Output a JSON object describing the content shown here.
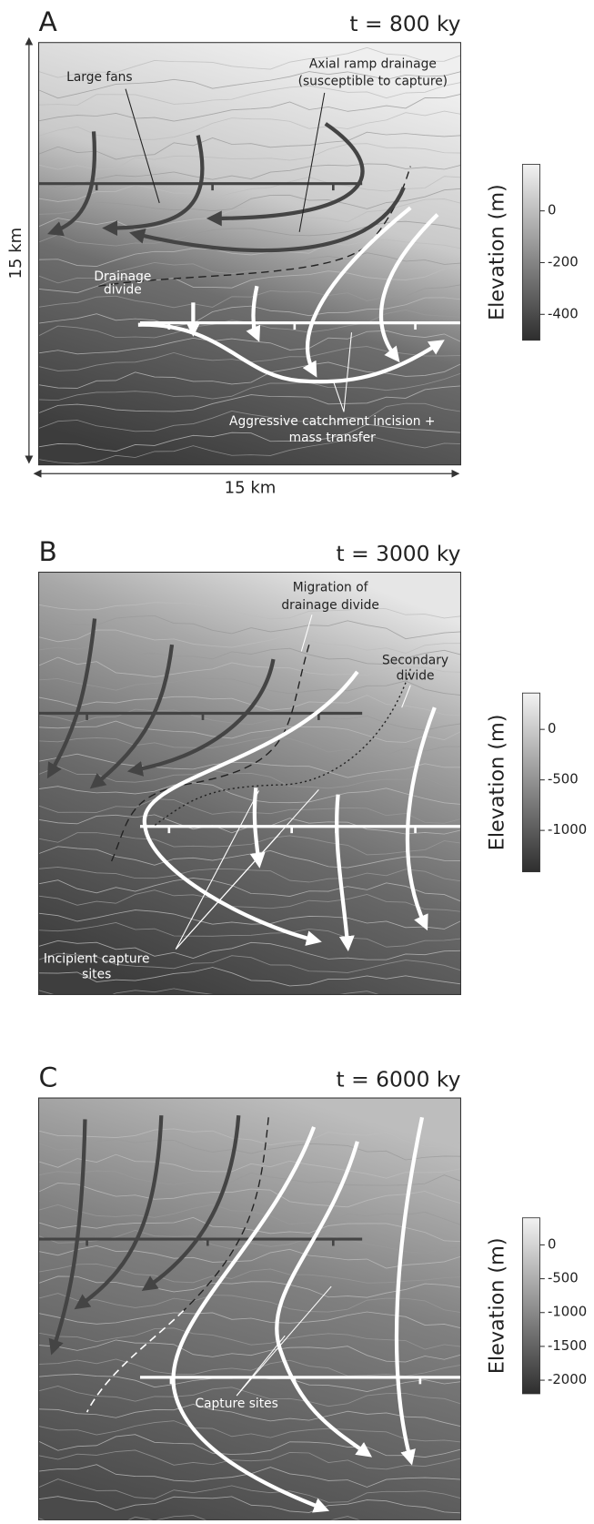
{
  "panels": [
    {
      "label": "A",
      "time": "t = 800 ky",
      "scale_x": "15 km",
      "scale_y": "15 km",
      "annotations": [
        "Large fans",
        "Axial ramp drainage",
        "(susceptible to capture)",
        "Drainage",
        "divide",
        "Aggressive catchment incision +",
        "mass transfer"
      ],
      "colorbar": {
        "title": "Elevation (m)",
        "lim": [
          180,
          -500
        ],
        "ticks": [
          0,
          -200,
          -400
        ]
      }
    },
    {
      "label": "B",
      "time": "t = 3000 ky",
      "annotations": [
        "Migration of",
        "drainage divide",
        "Secondary",
        "divide",
        "Incipient capture",
        "sites"
      ],
      "colorbar": {
        "title": "Elevation (m)",
        "lim": [
          360,
          -1410
        ],
        "ticks": [
          0,
          -500,
          -1000
        ]
      }
    },
    {
      "label": "C",
      "time": "t = 6000 ky",
      "annotations": [
        "Capture sites"
      ],
      "colorbar": {
        "title": "Elevation (m)",
        "lim": [
          400,
          -2200
        ],
        "ticks": [
          0,
          -500,
          -1000,
          -1500,
          -2000
        ]
      }
    }
  ]
}
